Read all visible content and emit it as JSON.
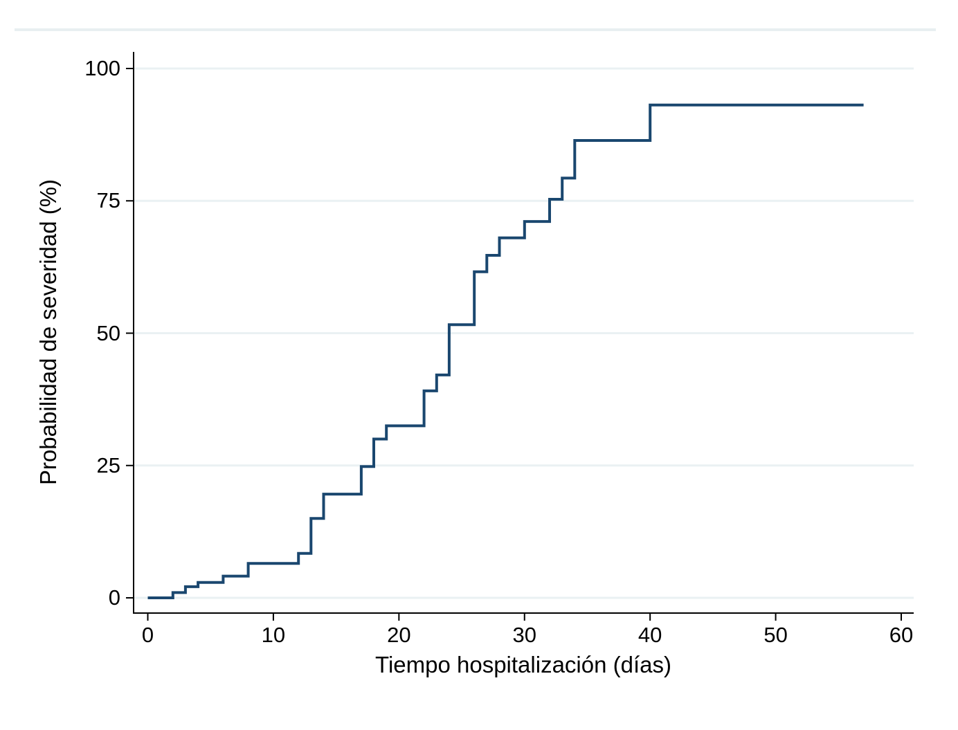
{
  "figure": {
    "background_color": "#ffffff",
    "top_rule_color": "#e8eff1"
  },
  "chart_data": {
    "type": "line",
    "subtype": "step-function (cumulative incidence / Kaplan-Meier failure curve)",
    "title": "",
    "xlabel": "Tiempo hospitalización (días)",
    "ylabel": "Probabilidad de severidad (%)",
    "xlim": [
      0,
      60
    ],
    "ylim": [
      0,
      100
    ],
    "x_ticks": [
      0,
      10,
      20,
      30,
      40,
      50,
      60
    ],
    "y_ticks": [
      0,
      25,
      50,
      75,
      100
    ],
    "grid": "horizontal gridlines at each y tick",
    "grid_color": "#eaf1f3",
    "axis_color": "#000000",
    "legend": "none",
    "series": [
      {
        "name": "Probabilidad de severidad",
        "color": "#1a476f",
        "steps_time_percent": [
          [
            0,
            0
          ],
          [
            2,
            1.0
          ],
          [
            3,
            2.1
          ],
          [
            4,
            2.9
          ],
          [
            6,
            4.1
          ],
          [
            8,
            6.5
          ],
          [
            12,
            8.4
          ],
          [
            13,
            15.0
          ],
          [
            14,
            19.6
          ],
          [
            17,
            24.8
          ],
          [
            18,
            30.0
          ],
          [
            19,
            32.5
          ],
          [
            22,
            39.1
          ],
          [
            23,
            42.1
          ],
          [
            24,
            51.6
          ],
          [
            26,
            61.6
          ],
          [
            27,
            64.7
          ],
          [
            28,
            68.0
          ],
          [
            30,
            71.1
          ],
          [
            32,
            75.3
          ],
          [
            33,
            79.3
          ],
          [
            34,
            86.4
          ],
          [
            40,
            93.1
          ]
        ],
        "end_time": 57,
        "final_value": 93.1
      }
    ]
  }
}
